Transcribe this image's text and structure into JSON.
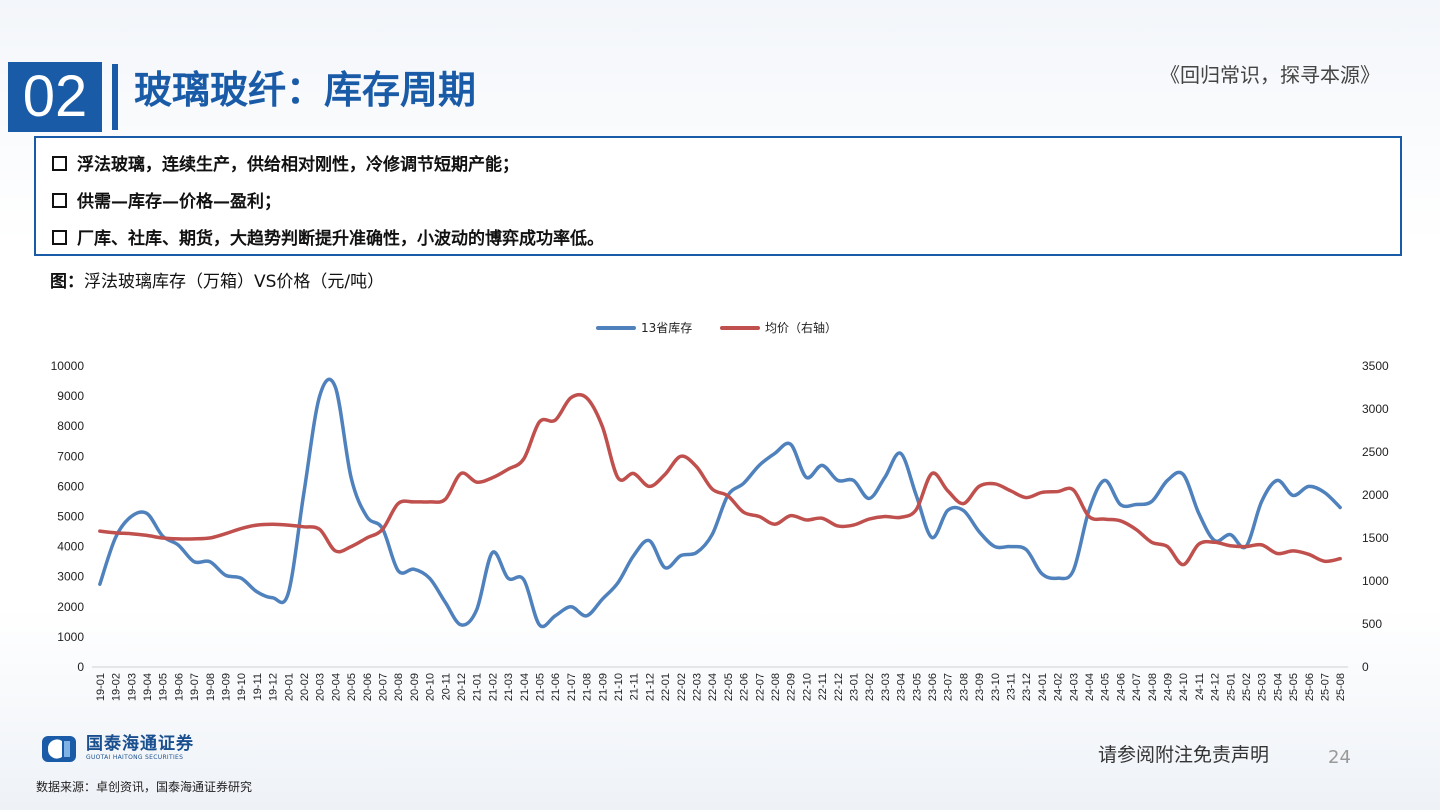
{
  "header": {
    "section_number": "02",
    "title": "玻璃玻纤：库存周期",
    "slogan": "《回归常识，探寻本源》"
  },
  "bullets": [
    "浮法玻璃，连续生产，供给相对刚性，冷修调节短期产能；",
    "供需—库存—价格—盈利；",
    "厂库、社库、期货，大趋势判断提升准确性，小波动的博弈成功率低。"
  ],
  "figure": {
    "label": "图：",
    "caption": "浮法玻璃库存（万箱）VS价格（元/吨）"
  },
  "chart_data": {
    "type": "line",
    "legend_position": "top-center",
    "grid": false,
    "x": [
      "19-01",
      "19-02",
      "19-03",
      "19-04",
      "19-05",
      "19-06",
      "19-07",
      "19-08",
      "19-09",
      "19-10",
      "19-11",
      "19-12",
      "20-01",
      "20-02",
      "20-03",
      "20-04",
      "20-05",
      "20-06",
      "20-07",
      "20-08",
      "20-09",
      "20-10",
      "20-11",
      "20-12",
      "21-01",
      "21-02",
      "21-03",
      "21-04",
      "21-05",
      "21-06",
      "21-07",
      "21-08",
      "21-09",
      "21-10",
      "21-11",
      "21-12",
      "22-01",
      "22-02",
      "22-03",
      "22-04",
      "22-05",
      "22-06",
      "22-07",
      "22-08",
      "22-09",
      "22-10",
      "22-11",
      "22-12",
      "23-01",
      "23-02",
      "23-03",
      "23-04",
      "23-05",
      "23-06",
      "23-07",
      "23-08",
      "23-09",
      "23-10",
      "23-11",
      "23-12",
      "24-01",
      "24-02",
      "24-03",
      "24-04",
      "24-05",
      "24-06",
      "24-07",
      "24-08",
      "24-09",
      "24-10",
      "24-11",
      "24-12",
      "25-01",
      "25-02",
      "25-03",
      "25-04",
      "25-05",
      "25-06",
      "25-07",
      "25-08"
    ],
    "y_left": {
      "min": 0,
      "max": 10000,
      "ticks": [
        "0",
        "1000",
        "2000",
        "3000",
        "4000",
        "5000",
        "6000",
        "7000",
        "8000",
        "9000",
        "10000"
      ]
    },
    "y_right": {
      "min": 0,
      "max": 3500,
      "ticks": [
        "0",
        "500",
        "1000",
        "1500",
        "2000",
        "2500",
        "3000",
        "3500"
      ]
    },
    "series": [
      {
        "name": "13省库存",
        "axis": "left",
        "color": "#4f81bd",
        "values": [
          2750,
          4300,
          5000,
          5100,
          4350,
          4050,
          3500,
          3500,
          3050,
          2950,
          2500,
          2300,
          2450,
          5800,
          9000,
          9300,
          6300,
          5000,
          4600,
          3200,
          3250,
          2950,
          2150,
          1400,
          1900,
          3800,
          2950,
          2900,
          1400,
          1700,
          2000,
          1700,
          2250,
          2800,
          3700,
          4200,
          3300,
          3700,
          3800,
          4400,
          5700,
          6100,
          6700,
          7100,
          7400,
          6300,
          6700,
          6200,
          6200,
          5600,
          6300,
          7100,
          5700,
          4300,
          5200,
          5200,
          4500,
          4000,
          4000,
          3900,
          3100,
          2950,
          3200,
          5200,
          6200,
          5400,
          5400,
          5500,
          6200,
          6400,
          5100,
          4200,
          4400,
          4000,
          5500,
          6200,
          5700,
          6000,
          5800,
          5300
        ]
      },
      {
        "name": "均价（右轴）",
        "axis": "right",
        "color": "#c0504d",
        "values": [
          1580,
          1560,
          1550,
          1530,
          1500,
          1490,
          1490,
          1500,
          1550,
          1610,
          1650,
          1660,
          1650,
          1630,
          1600,
          1350,
          1400,
          1500,
          1600,
          1900,
          1920,
          1920,
          1950,
          2250,
          2150,
          2200,
          2300,
          2420,
          2850,
          2870,
          3130,
          3130,
          2800,
          2200,
          2250,
          2100,
          2240,
          2450,
          2330,
          2070,
          1990,
          1800,
          1750,
          1660,
          1760,
          1710,
          1730,
          1640,
          1650,
          1720,
          1750,
          1740,
          1830,
          2250,
          2050,
          1900,
          2100,
          2130,
          2050,
          1970,
          2030,
          2040,
          2060,
          1750,
          1720,
          1700,
          1600,
          1450,
          1400,
          1190,
          1430,
          1450,
          1410,
          1400,
          1420,
          1320,
          1350,
          1310,
          1230,
          1260
        ]
      }
    ]
  },
  "footer": {
    "logo_text": "国泰海通证券",
    "logo_text_en": "GUOTAI HAITONG SECURITIES",
    "disclaimer": "请参阅附注免责声明",
    "page_number": "24",
    "source": "数据来源：卓创资讯，国泰海通证券研究"
  }
}
